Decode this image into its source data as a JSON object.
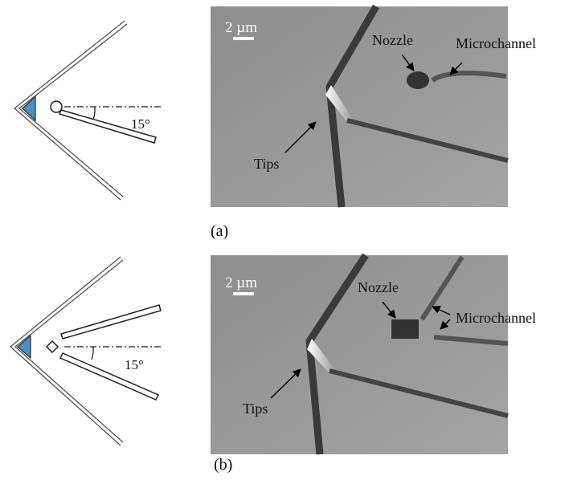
{
  "panels": [
    {
      "caption": "(a)",
      "angle": "15°",
      "scale": "2 µm",
      "nozzle": "Nozzle",
      "microchannel": "Microchannel",
      "tips": "Tips"
    },
    {
      "caption": "(b)",
      "angle": "15°",
      "scale": "2 µm",
      "nozzle": "Nozzle",
      "microchannel": "Microchannel",
      "tips": "Tips"
    }
  ]
}
